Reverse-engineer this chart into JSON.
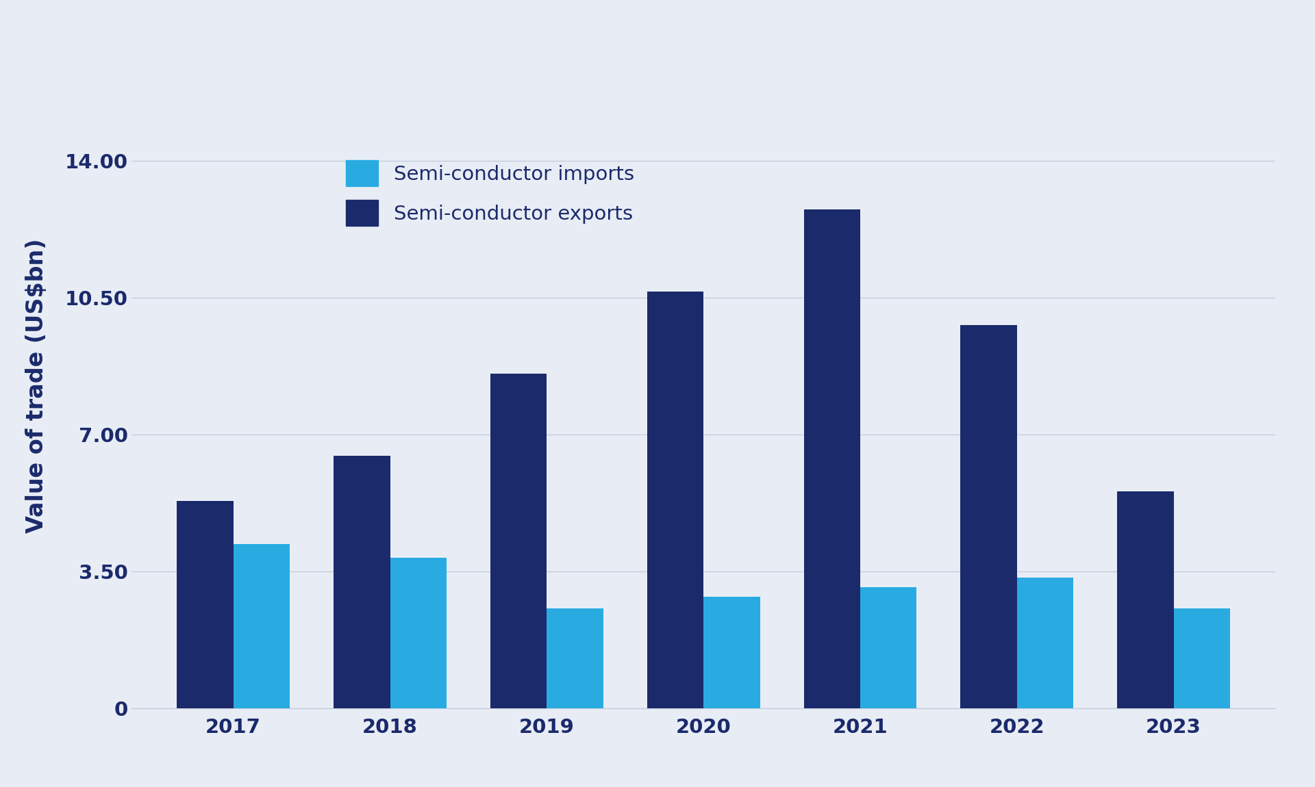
{
  "years": [
    "2017",
    "2018",
    "2019",
    "2020",
    "2021",
    "2022",
    "2023"
  ],
  "imports": [
    4.2,
    3.85,
    2.55,
    2.85,
    3.1,
    3.35,
    2.55
  ],
  "exports": [
    5.3,
    6.45,
    8.55,
    10.65,
    12.75,
    9.8,
    5.55
  ],
  "import_color": "#29ABE2",
  "export_color": "#1B2A6B",
  "background_color": "#E8EDF5",
  "ylabel": "Value of trade (US$bn)",
  "yticks": [
    0,
    3.5,
    7.0,
    10.5,
    14.0
  ],
  "ytick_labels": [
    "0",
    "3.50",
    "7.00",
    "10.50",
    "14.00"
  ],
  "ylim": [
    0,
    16.5
  ],
  "legend_imports": "Semi-conductor imports",
  "legend_exports": "Semi-conductor exports",
  "bar_width": 0.36,
  "grid_color": "#C5CEDD",
  "tick_color": "#1B2A6B",
  "label_fontsize": 24,
  "tick_fontsize": 21,
  "legend_fontsize": 21
}
